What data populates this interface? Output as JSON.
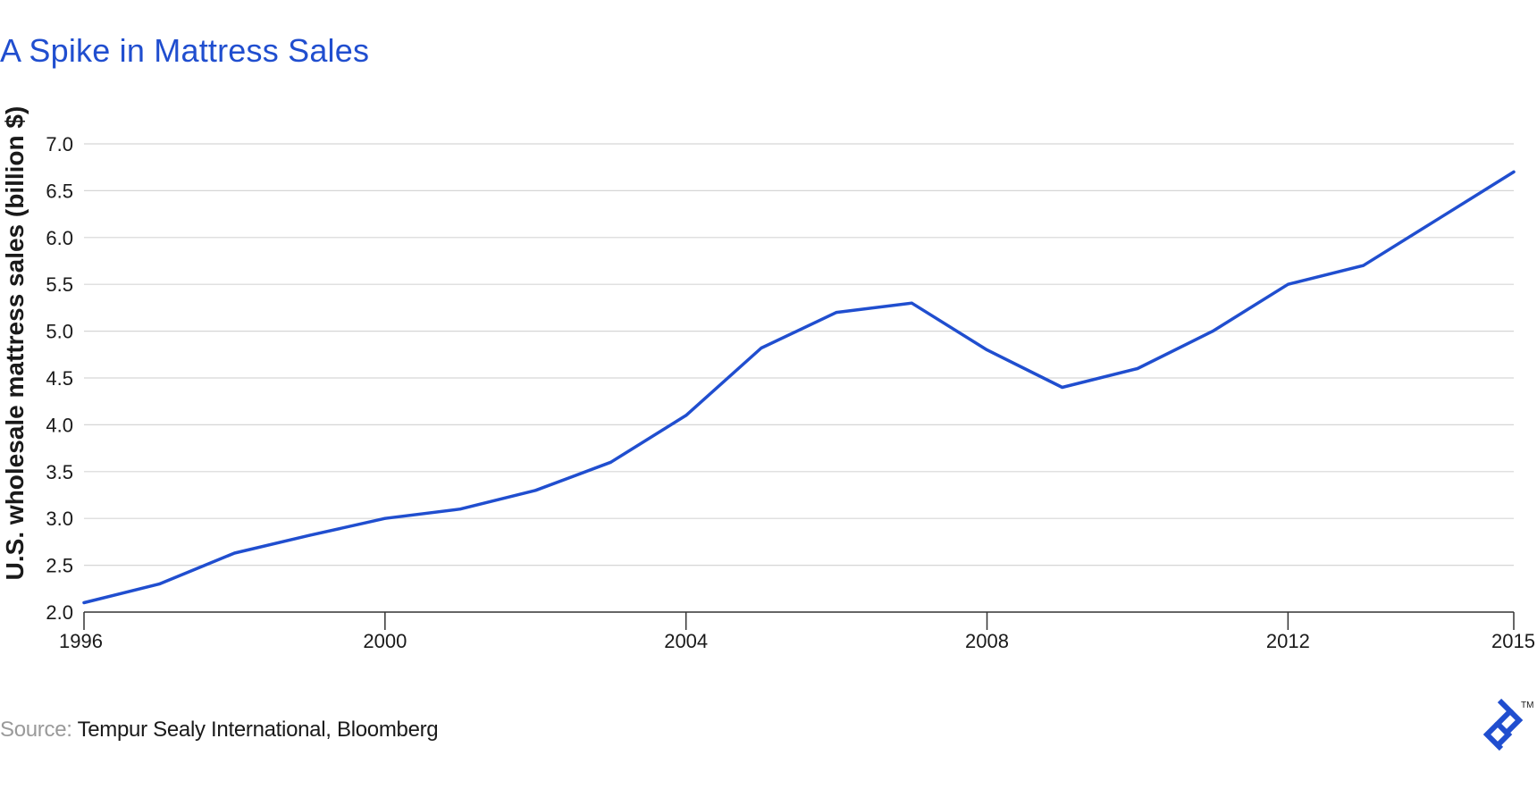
{
  "title": "A Spike in Mattress Sales",
  "source": {
    "label": "Source:",
    "text": "Tempur Sealy International, Bloomberg"
  },
  "logo": {
    "icon": "toptal-logo-icon",
    "trademark": "TM"
  },
  "colors": {
    "accent": "#204ecf",
    "line": "#204ecf",
    "grid": "#d6d6d6",
    "text": "#1a1a1a",
    "muted": "#9a9a9a"
  },
  "chart_data": {
    "type": "line",
    "title": "A Spike in Mattress Sales",
    "xlabel": "",
    "ylabel": "U.S. wholesale mattress sales (billion $)",
    "xlim": [
      1996,
      2015
    ],
    "ylim": [
      2.0,
      7.0
    ],
    "x_ticks": [
      "1996",
      "2000",
      "2004",
      "2008",
      "2012",
      "2015"
    ],
    "y_ticks": [
      "2.0",
      "2.5",
      "3.0",
      "3.5",
      "4.0",
      "4.5",
      "5.0",
      "5.5",
      "6.0",
      "6.5",
      "7.0"
    ],
    "grid": "horizontal",
    "x": [
      1996,
      1997,
      1998,
      1999,
      2000,
      2001,
      2002,
      2003,
      2004,
      2005,
      2006,
      2007,
      2008,
      2009,
      2010,
      2011,
      2012,
      2013,
      2014,
      2015
    ],
    "series": [
      {
        "values": [
          2.1,
          2.3,
          2.63,
          2.82,
          3.0,
          3.1,
          3.3,
          3.6,
          4.1,
          4.82,
          5.2,
          5.3,
          4.8,
          4.4,
          4.6,
          5.0,
          5.5,
          5.7,
          6.2,
          6.7
        ]
      }
    ]
  }
}
